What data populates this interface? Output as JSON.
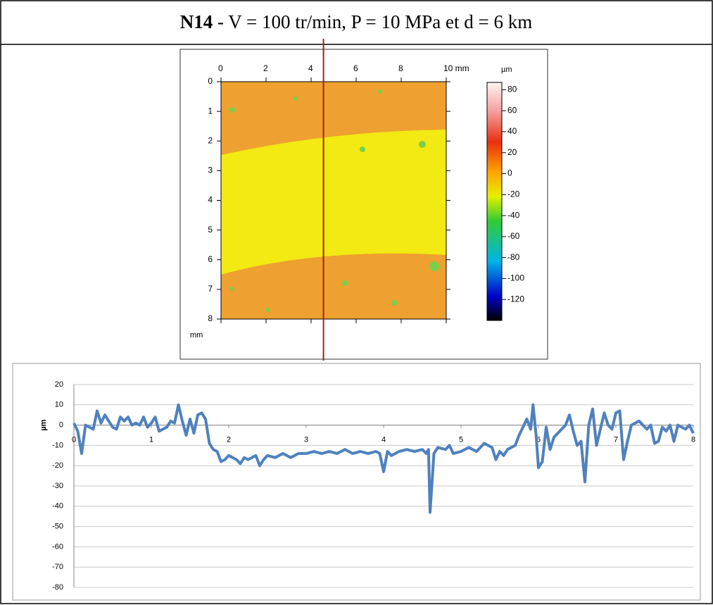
{
  "title": {
    "bold": "N14",
    "rest": " - V = 100 tr/min, P = 10 MPa et d = 6 km"
  },
  "chart_data": [
    {
      "type": "heatmap",
      "xlim": [
        0,
        10
      ],
      "ylim": [
        0,
        8
      ],
      "xticks": [
        0,
        2,
        4,
        6,
        8,
        {
          "value": 10,
          "label": "10 mm"
        }
      ],
      "yticks": [
        0,
        1,
        2,
        3,
        4,
        5,
        6,
        7,
        8
      ],
      "ylabel": "mm",
      "clabel": "µm",
      "clim": [
        -140,
        87
      ],
      "cticks": [
        80,
        60,
        40,
        20,
        0,
        -20,
        -40,
        -60,
        -80,
        -100,
        -120
      ],
      "section_x": 4.55,
      "section_color": "#a0201c"
    },
    {
      "type": "line",
      "ylabel": "µm",
      "xlim": [
        0,
        8
      ],
      "ylim": [
        -80,
        20
      ],
      "xticks": [
        0,
        1,
        2,
        3,
        4,
        5,
        6,
        7,
        8
      ],
      "yticks": [
        -80,
        -70,
        -60,
        -50,
        -40,
        -30,
        -20,
        -10,
        0,
        10,
        20
      ],
      "grid": true,
      "color": "#4f81bd",
      "x": [
        0,
        0.05,
        0.1,
        0.15,
        0.2,
        0.25,
        0.3,
        0.35,
        0.4,
        0.45,
        0.5,
        0.55,
        0.6,
        0.65,
        0.7,
        0.75,
        0.8,
        0.85,
        0.9,
        0.95,
        1.0,
        1.05,
        1.1,
        1.15,
        1.2,
        1.25,
        1.3,
        1.35,
        1.4,
        1.45,
        1.5,
        1.55,
        1.6,
        1.65,
        1.7,
        1.75,
        1.8,
        1.85,
        1.9,
        1.95,
        2.0,
        2.05,
        2.1,
        2.15,
        2.2,
        2.25,
        2.3,
        2.35,
        2.4,
        2.45,
        2.5,
        2.6,
        2.7,
        2.8,
        2.9,
        3.0,
        3.1,
        3.2,
        3.3,
        3.4,
        3.5,
        3.6,
        3.7,
        3.8,
        3.9,
        3.95,
        4.0,
        4.05,
        4.1,
        4.2,
        4.3,
        4.4,
        4.5,
        4.55,
        4.58,
        4.6,
        4.65,
        4.7,
        4.8,
        4.85,
        4.9,
        5.0,
        5.1,
        5.2,
        5.3,
        5.4,
        5.45,
        5.5,
        5.55,
        5.6,
        5.7,
        5.75,
        5.8,
        5.85,
        5.9,
        5.93,
        5.97,
        6.0,
        6.05,
        6.1,
        6.15,
        6.2,
        6.25,
        6.3,
        6.35,
        6.4,
        6.45,
        6.5,
        6.55,
        6.6,
        6.65,
        6.7,
        6.75,
        6.8,
        6.85,
        6.9,
        6.95,
        7.0,
        7.05,
        7.1,
        7.15,
        7.2,
        7.3,
        7.4,
        7.45,
        7.5,
        7.55,
        7.6,
        7.65,
        7.7,
        7.75,
        7.8,
        7.85,
        7.9,
        7.95,
        8.0
      ],
      "values": [
        1,
        -3,
        -14,
        0,
        -1,
        -2,
        7,
        1,
        5,
        2,
        -1,
        -2,
        4,
        2,
        4,
        0,
        1,
        0,
        4,
        -1,
        1,
        4,
        -3,
        -2,
        -1,
        2,
        1,
        10,
        2,
        -5,
        3,
        -4,
        5,
        6,
        3,
        -9,
        -12,
        -13,
        -18,
        -17,
        -15,
        -16,
        -17,
        -19,
        -16,
        -17,
        -16,
        -15,
        -20,
        -17,
        -15,
        -16,
        -14,
        -16,
        -14,
        -14,
        -13,
        -14,
        -13,
        -14,
        -12,
        -14,
        -13,
        -14,
        -13,
        -14,
        -23,
        -13,
        -15,
        -13,
        -12,
        -13,
        -12,
        -14,
        -12,
        -43,
        -14,
        -11,
        -12,
        -10,
        -14,
        -13,
        -11,
        -13,
        -9,
        -11,
        -17,
        -13,
        -15,
        -12,
        -10,
        -5,
        -1,
        3,
        -2,
        10,
        -5,
        -21,
        -18,
        -1,
        -12,
        -6,
        -4,
        -2,
        0,
        5,
        -3,
        -10,
        -8,
        -28,
        0,
        8,
        -10,
        -2,
        6,
        0,
        -2,
        6,
        7,
        -17,
        -8,
        0,
        2,
        -2,
        0,
        -9,
        -8,
        -1,
        -3,
        0,
        -8,
        0,
        -1,
        -2,
        0,
        -4
      ]
    }
  ]
}
